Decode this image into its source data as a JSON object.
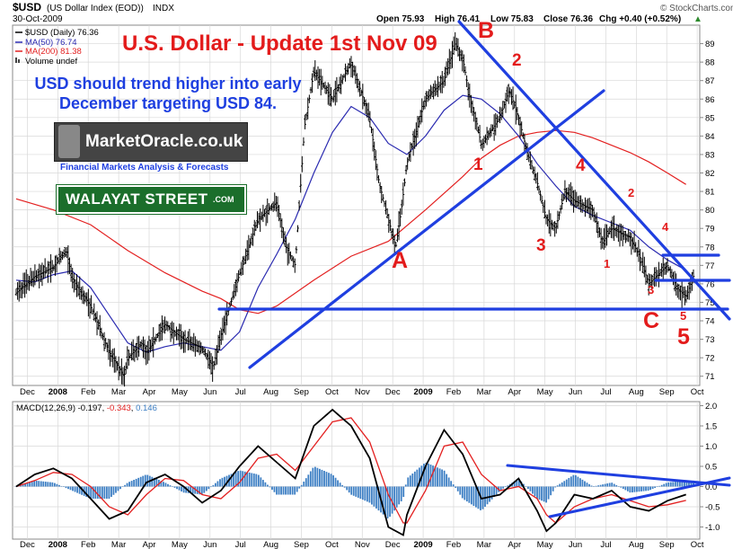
{
  "header": {
    "symbol": "$USD",
    "symbol_desc": "(US Dollar Index (EOD))",
    "exchange": "INDX",
    "date": "30-Oct-2009",
    "ohlc_open": "Open 75.93",
    "ohlc_high": "High 76.41",
    "ohlc_low": "Low 75.83",
    "ohlc_close": "Close 76.36",
    "ohlc_chg": "Chg +0.40 (+0.52%)",
    "ohlc_chg_arrow": "▲",
    "credit": "© StockCharts.com"
  },
  "legend": {
    "price": "$USD (Daily) 76.36",
    "ma50": "MA(50) 76.74",
    "ma200": "MA(200) 81.38",
    "volume": "Volume undef"
  },
  "annotations": {
    "title": "U.S. Dollar - Update 1st Nov 09",
    "forecast_line1": "USD should trend higher into early",
    "forecast_line2": "December targeting USD 84.",
    "logo_name": "MarketOracle.co.uk",
    "logo_tagline": "Financial Markets Analysis & Forecasts",
    "walayat": "WALAYAT STREET",
    "walayat_com": ".COM",
    "wave_labels": [
      {
        "text": "B",
        "cls": "red-big"
      },
      {
        "text": "A",
        "cls": "red-big"
      },
      {
        "text": "C",
        "cls": "red-big"
      },
      {
        "text": "5",
        "cls": "red-big"
      },
      {
        "text": "1",
        "cls": "red-mid"
      },
      {
        "text": "2",
        "cls": "red-mid"
      },
      {
        "text": "3",
        "cls": "red-mid"
      },
      {
        "text": "4",
        "cls": "red-mid"
      },
      {
        "text": "1",
        "cls": "red-sm"
      },
      {
        "text": "2",
        "cls": "red-sm"
      },
      {
        "text": "3",
        "cls": "red-sm"
      },
      {
        "text": "4",
        "cls": "red-sm"
      },
      {
        "text": "5",
        "cls": "red-sm"
      }
    ]
  },
  "colors": {
    "price": "#000000",
    "ma50": "#2a2ab0",
    "ma200": "#e32020",
    "trendlines": "#1f3fe0",
    "macd_hist": "#3d7fc4",
    "macd_line": "#000000",
    "macd_signal": "#e32020",
    "grid": "#d8d8d8"
  },
  "chart_data": [
    {
      "type": "ohlc",
      "ylim": [
        70.5,
        90
      ],
      "yticks": [
        71,
        72,
        73,
        74,
        75,
        76,
        77,
        78,
        79,
        80,
        81,
        82,
        83,
        84,
        85,
        86,
        87,
        88,
        89
      ],
      "x_months": [
        "Dec",
        "2008",
        "Feb",
        "Mar",
        "Apr",
        "May",
        "Jun",
        "Jul",
        "Aug",
        "Sep",
        "Oct",
        "Nov",
        "Dec",
        "2009",
        "Feb",
        "Mar",
        "Apr",
        "May",
        "Jun",
        "Jul",
        "Aug",
        "Sep",
        "Oct"
      ],
      "price_path": [
        [
          0,
          75.5
        ],
        [
          1,
          76.4
        ],
        [
          2,
          76.9
        ],
        [
          2.7,
          77.8
        ],
        [
          3,
          76.3
        ],
        [
          4,
          74.8
        ],
        [
          5,
          72.3
        ],
        [
          5.8,
          71.0
        ],
        [
          6,
          72.0
        ],
        [
          6.8,
          72.8
        ],
        [
          7,
          72.3
        ],
        [
          8,
          73.8
        ],
        [
          9,
          73.0
        ],
        [
          10,
          72.5
        ],
        [
          10.6,
          71.5
        ],
        [
          11,
          73.2
        ],
        [
          12,
          76.5
        ],
        [
          13,
          79.5
        ],
        [
          14,
          80.4
        ],
        [
          14.5,
          78.0
        ],
        [
          15,
          77.0
        ],
        [
          15.5,
          84.5
        ],
        [
          16,
          87.5
        ],
        [
          17,
          86.0
        ],
        [
          18,
          88.0
        ],
        [
          18.5,
          86.5
        ],
        [
          19,
          85.0
        ],
        [
          19.5,
          81.5
        ],
        [
          20,
          79.5
        ],
        [
          20.4,
          78.0
        ],
        [
          20.7,
          80.0
        ],
        [
          21,
          82.5
        ],
        [
          22,
          86.0
        ],
        [
          23,
          87.0
        ],
        [
          23.6,
          89.0
        ],
        [
          24,
          88.2
        ],
        [
          24.4,
          86.0
        ],
        [
          24.8,
          84.5
        ],
        [
          25,
          83.5
        ],
        [
          26,
          85.0
        ],
        [
          26.5,
          86.5
        ],
        [
          27,
          85.0
        ],
        [
          27.5,
          83.0
        ],
        [
          28,
          81.5
        ],
        [
          28.5,
          79.5
        ],
        [
          29,
          79.0
        ],
        [
          29.5,
          81.0
        ],
        [
          30,
          80.5
        ],
        [
          31,
          80.0
        ],
        [
          31.5,
          78.2
        ],
        [
          32,
          79.0
        ],
        [
          33,
          78.5
        ],
        [
          33.5,
          77.5
        ],
        [
          34,
          76.0
        ],
        [
          35,
          77.0
        ],
        [
          35.5,
          75.8
        ],
        [
          36,
          75.3
        ],
        [
          36.4,
          76.4
        ]
      ],
      "ma50_path": [
        [
          0,
          76.2
        ],
        [
          1,
          76.1
        ],
        [
          2,
          76.5
        ],
        [
          3,
          76.7
        ],
        [
          4,
          75.8
        ],
        [
          5,
          74.3
        ],
        [
          6,
          72.8
        ],
        [
          7,
          72.3
        ],
        [
          8,
          72.6
        ],
        [
          9,
          72.8
        ],
        [
          10,
          72.6
        ],
        [
          11,
          72.4
        ],
        [
          12,
          73.4
        ],
        [
          13,
          75.8
        ],
        [
          14,
          77.6
        ],
        [
          15,
          79.5
        ],
        [
          16,
          82.0
        ],
        [
          17,
          84.2
        ],
        [
          18,
          85.6
        ],
        [
          19,
          85.0
        ],
        [
          20,
          83.6
        ],
        [
          21,
          83.0
        ],
        [
          22,
          84.0
        ],
        [
          23,
          85.4
        ],
        [
          24,
          86.2
        ],
        [
          25,
          86.0
        ],
        [
          26,
          85.2
        ],
        [
          27,
          84.0
        ],
        [
          28,
          82.5
        ],
        [
          29,
          81.3
        ],
        [
          30,
          80.2
        ],
        [
          31,
          79.7
        ],
        [
          32,
          79.3
        ],
        [
          33,
          78.9
        ],
        [
          34,
          78.0
        ],
        [
          35,
          77.3
        ],
        [
          36,
          76.74
        ]
      ],
      "ma200_path": [
        [
          0,
          80.6
        ],
        [
          2,
          80.0
        ],
        [
          4,
          79.2
        ],
        [
          6,
          77.8
        ],
        [
          8,
          76.6
        ],
        [
          10,
          75.6
        ],
        [
          11,
          75.2
        ],
        [
          12,
          74.6
        ],
        [
          13,
          74.4
        ],
        [
          14,
          74.8
        ],
        [
          16,
          76.2
        ],
        [
          18,
          77.5
        ],
        [
          20,
          78.3
        ],
        [
          22,
          80.0
        ],
        [
          24,
          81.8
        ],
        [
          25,
          82.8
        ],
        [
          26,
          83.5
        ],
        [
          27,
          84.0
        ],
        [
          28,
          84.2
        ],
        [
          29,
          84.3
        ],
        [
          30,
          84.2
        ],
        [
          31,
          83.9
        ],
        [
          32,
          83.5
        ],
        [
          33,
          83.1
        ],
        [
          34,
          82.6
        ],
        [
          35,
          82.0
        ],
        [
          36,
          81.38
        ]
      ]
    },
    {
      "type": "line",
      "title": "MACD(12,26,9) -0.197, -0.343, 0.146",
      "macd_label": "MACD(12,26,9)",
      "macd_v1": "-0.197",
      "macd_v2": "-0.343",
      "macd_v3": "0.146",
      "ylim": [
        -1.3,
        2.1
      ],
      "yticks": [
        -1.0,
        -0.5,
        0.0,
        0.5,
        1.0,
        1.5,
        2.0
      ],
      "ytick_labels": [
        "-1.0",
        "-0.5",
        "0.0",
        "0.5",
        "1.0",
        "1.5",
        "2.0"
      ],
      "macd_path": [
        [
          0,
          0.0
        ],
        [
          1,
          0.3
        ],
        [
          2,
          0.45
        ],
        [
          3,
          0.2
        ],
        [
          4,
          -0.3
        ],
        [
          5,
          -0.8
        ],
        [
          6,
          -0.6
        ],
        [
          7,
          0.1
        ],
        [
          8,
          0.3
        ],
        [
          9,
          0.0
        ],
        [
          10,
          -0.4
        ],
        [
          11,
          -0.1
        ],
        [
          12,
          0.5
        ],
        [
          13,
          1.0
        ],
        [
          14,
          0.6
        ],
        [
          15,
          0.2
        ],
        [
          16,
          1.5
        ],
        [
          17,
          1.9
        ],
        [
          18,
          1.5
        ],
        [
          19,
          0.7
        ],
        [
          20,
          -1.0
        ],
        [
          20.8,
          -1.2
        ],
        [
          21,
          -0.7
        ],
        [
          22,
          0.5
        ],
        [
          23,
          1.4
        ],
        [
          24,
          0.8
        ],
        [
          25,
          -0.3
        ],
        [
          26,
          -0.2
        ],
        [
          27,
          0.2
        ],
        [
          28,
          -0.6
        ],
        [
          28.5,
          -1.1
        ],
        [
          29,
          -0.9
        ],
        [
          30,
          -0.2
        ],
        [
          31,
          -0.3
        ],
        [
          32,
          -0.1
        ],
        [
          33,
          -0.5
        ],
        [
          34,
          -0.6
        ],
        [
          35,
          -0.35
        ],
        [
          36,
          -0.197
        ]
      ],
      "signal_path": [
        [
          0,
          0.0
        ],
        [
          1,
          0.15
        ],
        [
          2,
          0.35
        ],
        [
          3,
          0.3
        ],
        [
          4,
          0.0
        ],
        [
          5,
          -0.5
        ],
        [
          6,
          -0.7
        ],
        [
          7,
          -0.2
        ],
        [
          8,
          0.2
        ],
        [
          9,
          0.15
        ],
        [
          10,
          -0.2
        ],
        [
          11,
          -0.3
        ],
        [
          12,
          0.1
        ],
        [
          13,
          0.7
        ],
        [
          14,
          0.8
        ],
        [
          15,
          0.4
        ],
        [
          16,
          1.0
        ],
        [
          17,
          1.6
        ],
        [
          18,
          1.7
        ],
        [
          19,
          1.1
        ],
        [
          20,
          -0.2
        ],
        [
          20.8,
          -0.9
        ],
        [
          21,
          -0.9
        ],
        [
          22,
          -0.1
        ],
        [
          23,
          1.0
        ],
        [
          24,
          1.1
        ],
        [
          25,
          0.3
        ],
        [
          26,
          -0.1
        ],
        [
          27,
          0.0
        ],
        [
          28,
          -0.3
        ],
        [
          28.5,
          -0.7
        ],
        [
          29,
          -0.9
        ],
        [
          30,
          -0.5
        ],
        [
          31,
          -0.3
        ],
        [
          32,
          -0.2
        ],
        [
          33,
          -0.35
        ],
        [
          34,
          -0.5
        ],
        [
          35,
          -0.45
        ],
        [
          36,
          -0.343
        ]
      ]
    }
  ]
}
